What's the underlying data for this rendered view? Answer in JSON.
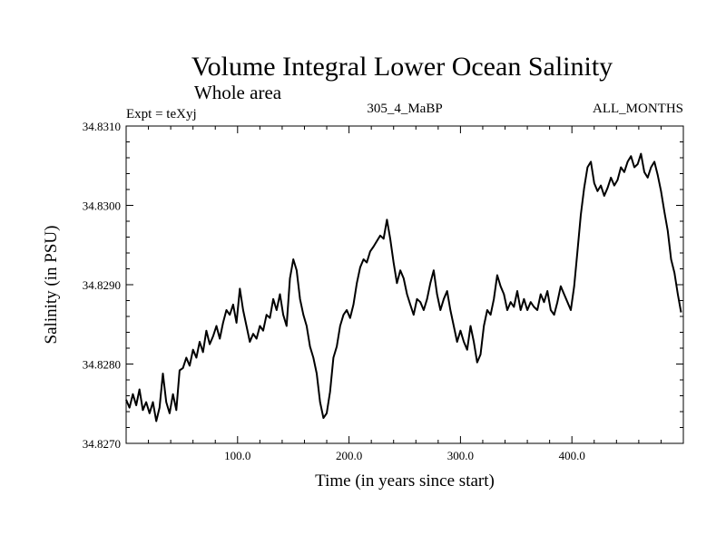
{
  "chart_data": {
    "type": "line",
    "title": "Volume Integral Lower Ocean Salinity",
    "subtitle": "Whole area",
    "header_left": "Expt = teXyj",
    "header_center": "305_4_MaBP",
    "header_right": "ALL_MONTHS",
    "xlabel": "Time (in years since start)",
    "ylabel": "Salinity (in PSU)",
    "xlim": [
      0,
      500
    ],
    "ylim": [
      34.827,
      34.831
    ],
    "x_ticks": [
      100,
      200,
      300,
      400
    ],
    "x_tick_labels": [
      "100.0",
      "200.0",
      "300.0",
      "400.0"
    ],
    "y_ticks": [
      34.827,
      34.828,
      34.829,
      34.83,
      34.831
    ],
    "y_tick_labels": [
      "34.8270",
      "34.8280",
      "34.8290",
      "34.8300",
      "34.8310"
    ],
    "grid": false,
    "line_color": "#000000",
    "series": [
      {
        "x": [
          0,
          3,
          6,
          9,
          12,
          15,
          18,
          21,
          24,
          27,
          30,
          33,
          36,
          39,
          42,
          45,
          48,
          51,
          54,
          57,
          60,
          63,
          66,
          69,
          72,
          75,
          78,
          81,
          84,
          87,
          90,
          93,
          96,
          99,
          102,
          105,
          108,
          111,
          114,
          117,
          120,
          123,
          126,
          129,
          132,
          135,
          138,
          141,
          144,
          147,
          150,
          153,
          156,
          159,
          162,
          165,
          168,
          171,
          174,
          177,
          180,
          183,
          186,
          189,
          192,
          195,
          198,
          201,
          204,
          207,
          210,
          213,
          216,
          219,
          222,
          225,
          228,
          231,
          234,
          237,
          240,
          243,
          246,
          249,
          252,
          255,
          258,
          261,
          264,
          267,
          270,
          273,
          276,
          279,
          282,
          285,
          288,
          291,
          294,
          297,
          300,
          303,
          306,
          309,
          312,
          315,
          318,
          321,
          324,
          327,
          330,
          333,
          336,
          339,
          342,
          345,
          348,
          351,
          354,
          357,
          360,
          363,
          366,
          369,
          372,
          375,
          378,
          381,
          384,
          387,
          390,
          393,
          396,
          399,
          402,
          405,
          408,
          411,
          414,
          417,
          420,
          423,
          426,
          429,
          432,
          435,
          438,
          441,
          444,
          447,
          450,
          453,
          456,
          459,
          462,
          465,
          468,
          471,
          474,
          477,
          480,
          483,
          486,
          489,
          492,
          495,
          498
        ],
        "values": [
          34.82755,
          34.82745,
          34.82762,
          34.82748,
          34.82768,
          34.82742,
          34.82752,
          34.82738,
          34.82752,
          34.82728,
          34.82745,
          34.82788,
          34.82752,
          34.82738,
          34.82762,
          34.82742,
          34.82792,
          34.82795,
          34.82808,
          34.82798,
          34.82818,
          34.82808,
          34.82828,
          34.82815,
          34.82842,
          34.82825,
          34.82835,
          34.82848,
          34.82832,
          34.82852,
          34.82868,
          34.82862,
          34.82875,
          34.82852,
          34.82895,
          34.82868,
          34.82848,
          34.82828,
          34.82838,
          34.82832,
          34.82848,
          34.82842,
          34.82862,
          34.82858,
          34.82882,
          34.82868,
          34.82888,
          34.82862,
          34.82848,
          34.82908,
          34.82932,
          34.82918,
          34.82882,
          34.82862,
          34.82848,
          34.82822,
          34.82808,
          34.82788,
          34.82752,
          34.82732,
          34.82738,
          34.82765,
          34.82808,
          34.82822,
          34.82848,
          34.82862,
          34.82868,
          34.82858,
          34.82875,
          34.82902,
          34.82922,
          34.82932,
          34.82928,
          34.82942,
          34.82948,
          34.82955,
          34.82962,
          34.82958,
          34.82982,
          34.82958,
          34.82928,
          34.82902,
          34.82918,
          34.82908,
          34.82888,
          34.82875,
          34.82862,
          34.82882,
          34.82878,
          34.82868,
          34.82882,
          34.82902,
          34.82918,
          34.82888,
          34.82868,
          34.82882,
          34.82892,
          34.82868,
          34.82848,
          34.82828,
          34.82842,
          34.82828,
          34.82818,
          34.82848,
          34.82828,
          34.82802,
          34.82812,
          34.82848,
          34.82868,
          34.82862,
          34.82882,
          34.82912,
          34.82898,
          34.82888,
          34.82868,
          34.82878,
          34.82872,
          34.82892,
          34.82868,
          34.82882,
          34.82868,
          34.82878,
          34.82872,
          34.82868,
          34.82888,
          34.82878,
          34.82892,
          34.82868,
          34.82862,
          34.82878,
          34.82898,
          34.82888,
          34.82878,
          34.82868,
          34.82898,
          34.82942,
          34.82988,
          34.83022,
          34.83048,
          34.83055,
          34.83028,
          34.83018,
          34.83025,
          34.83012,
          34.83022,
          34.83035,
          34.83025,
          34.83032,
          34.83048,
          34.83042,
          34.83055,
          34.83062,
          34.83048,
          34.83052,
          34.83065,
          34.83042,
          34.83035,
          34.83048,
          34.83055,
          34.83038,
          34.83018,
          34.82992,
          34.82968,
          34.82932,
          34.82915,
          34.82888,
          34.82865
        ]
      }
    ]
  }
}
